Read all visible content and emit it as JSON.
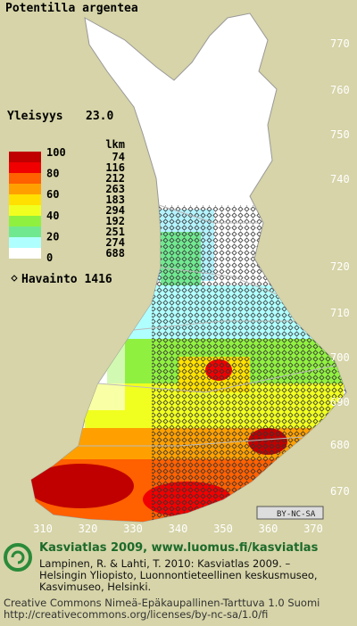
{
  "header": {
    "title": "Potentilla argentea"
  },
  "frequency": {
    "label": "Yleisyys",
    "value": "23.0"
  },
  "legend": {
    "count_header": "lkm",
    "labels": [
      "100",
      "80",
      "60",
      "40",
      "20",
      "0"
    ],
    "classes": [
      {
        "count": "74",
        "color": "#c00000"
      },
      {
        "count": "116",
        "color": "#f00000"
      },
      {
        "count": "212",
        "color": "#ff6000"
      },
      {
        "count": "263",
        "color": "#ffa000"
      },
      {
        "count": "183",
        "color": "#ffe000"
      },
      {
        "count": "294",
        "color": "#f0ff20"
      },
      {
        "count": "192",
        "color": "#90f040"
      },
      {
        "count": "251",
        "color": "#70e890"
      },
      {
        "count": "274",
        "color": "#b0ffff"
      },
      {
        "count": "688",
        "color": "#ffffff"
      }
    ],
    "observations": "Havainto 1416"
  },
  "axes": {
    "north": [
      "770",
      "760",
      "750",
      "740",
      "720",
      "710",
      "700",
      "690",
      "680",
      "670"
    ],
    "east": [
      "310",
      "320",
      "330",
      "340",
      "350",
      "360",
      "370"
    ]
  },
  "license_badge": "BY-NC-SA",
  "footer": {
    "site": "Kasviatlas 2009, www.luomus.fi/kasviatlas",
    "citation": [
      "Lampinen, R. & Lahti, T. 2010: Kasviatlas 2009. –",
      "Helsingin Yliopisto, Luonnontieteellinen keskusmuseo,",
      "Kasvimuseo, Helsinki."
    ],
    "license": [
      "Creative Commons Nimeä-Epäkaupallinen-Tarttuva 1.0 Suomi",
      "http://creativecommons.org/licenses/by-nc-sa/1.0/fi"
    ]
  }
}
